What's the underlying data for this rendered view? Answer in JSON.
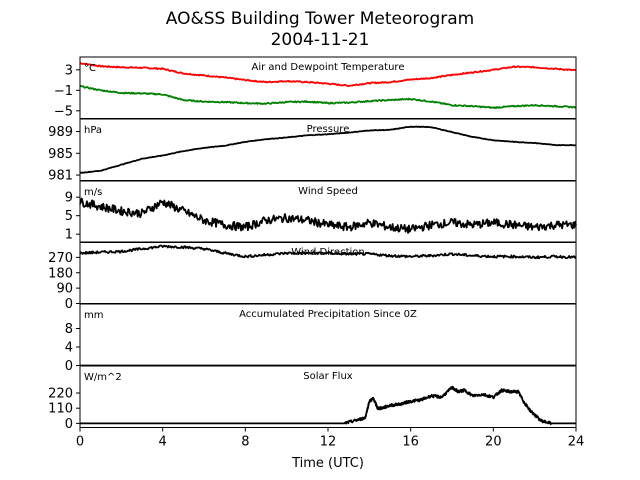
{
  "figure": {
    "title_line1": "AO&SS Building Tower Meteorogram",
    "title_line2": "2004-11-21",
    "xlabel": "Time (UTC)"
  },
  "chart_data": [
    {
      "type": "line",
      "title": "Air and Dewpoint Temperature",
      "unit": "°C",
      "xlim": [
        0,
        24
      ],
      "ylim": [
        -6.5,
        5.5
      ],
      "yticks": [
        -5,
        -1,
        3
      ],
      "ytick_labels": [
        "−5",
        "−1",
        "3"
      ],
      "x": [
        0,
        1,
        2,
        3,
        4,
        5,
        6,
        7,
        8,
        9,
        10,
        11,
        12,
        13,
        14,
        15,
        16,
        17,
        18,
        19,
        20,
        21,
        22,
        23,
        24
      ],
      "series": [
        {
          "key": "air",
          "color": "#ff0000",
          "values": [
            4.3,
            3.7,
            3.5,
            3.4,
            3.2,
            2.3,
            1.9,
            1.5,
            1.0,
            0.6,
            0.8,
            0.6,
            0.3,
            -0.1,
            0.4,
            0.6,
            1.1,
            1.4,
            2.0,
            2.5,
            3.0,
            3.6,
            3.5,
            3.2,
            2.9
          ]
        },
        {
          "key": "dewpoint",
          "color": "#008000",
          "values": [
            -0.2,
            -1.0,
            -1.5,
            -1.6,
            -1.8,
            -2.9,
            -3.2,
            -3.3,
            -3.5,
            -3.6,
            -3.3,
            -3.2,
            -3.5,
            -3.4,
            -3.1,
            -2.9,
            -2.7,
            -3.2,
            -3.9,
            -4.1,
            -4.4,
            -4.1,
            -3.9,
            -4.1,
            -4.3
          ]
        }
      ]
    },
    {
      "type": "line",
      "title": "Pressure",
      "unit": "hPa",
      "xlim": [
        0,
        24
      ],
      "ylim": [
        980,
        991.3
      ],
      "yticks": [
        981,
        985,
        989
      ],
      "x": [
        0,
        1,
        2,
        3,
        4,
        5,
        6,
        7,
        8,
        9,
        10,
        11,
        12,
        13,
        14,
        15,
        16,
        17,
        18,
        19,
        20,
        21,
        22,
        23,
        24
      ],
      "series": [
        {
          "key": "pressure",
          "color": "#000000",
          "values": [
            981.4,
            981.8,
            982.9,
            984.0,
            984.6,
            985.4,
            986.0,
            986.4,
            987.1,
            987.6,
            987.9,
            988.3,
            988.5,
            988.8,
            989.2,
            989.3,
            989.9,
            989.8,
            988.9,
            988.0,
            987.4,
            987.1,
            986.9,
            986.5,
            986.5
          ]
        }
      ]
    },
    {
      "type": "line",
      "title": "Wind Speed",
      "unit": "m/s",
      "xlim": [
        0,
        24
      ],
      "ylim": [
        -0.8,
        12.5
      ],
      "yticks": [
        1,
        5,
        9
      ],
      "x": [
        0,
        1,
        2,
        3,
        4,
        5,
        6,
        7,
        8,
        9,
        10,
        11,
        12,
        13,
        14,
        15,
        16,
        17,
        18,
        19,
        20,
        21,
        22,
        23,
        24
      ],
      "series": [
        {
          "key": "wind_speed",
          "color": "#000000",
          "values": [
            8,
            7,
            6,
            5.5,
            8,
            6,
            4,
            3,
            2.5,
            4,
            4.5,
            4,
            3,
            2.5,
            3.5,
            2.5,
            2,
            3,
            3.5,
            3,
            3.5,
            3,
            2.5,
            3,
            3
          ]
        }
      ]
    },
    {
      "type": "line",
      "title": "Wind Direction",
      "unit": "",
      "xlim": [
        0,
        24
      ],
      "ylim": [
        0,
        360
      ],
      "yticks": [
        0,
        90,
        180,
        270
      ],
      "x": [
        0,
        1,
        2,
        3,
        4,
        5,
        6,
        7,
        8,
        9,
        10,
        11,
        12,
        13,
        14,
        15,
        16,
        17,
        18,
        19,
        20,
        21,
        22,
        23,
        24
      ],
      "series": [
        {
          "key": "wind_direction",
          "color": "#000000",
          "values": [
            295,
            300,
            305,
            320,
            335,
            330,
            320,
            295,
            275,
            285,
            295,
            295,
            295,
            290,
            290,
            280,
            275,
            280,
            290,
            280,
            275,
            275,
            270,
            275,
            270
          ]
        }
      ]
    },
    {
      "type": "line",
      "title": "Accumulated Precipitation Since 0Z",
      "unit": "mm",
      "xlim": [
        0,
        24
      ],
      "ylim": [
        0,
        13.3
      ],
      "yticks": [
        0,
        4,
        8
      ],
      "x": [
        0,
        24
      ],
      "series": [
        {
          "key": "precipitation",
          "color": "#000000",
          "values": [
            0,
            0
          ]
        }
      ]
    },
    {
      "type": "line",
      "title": "Solar Flux",
      "unit": "W/m^2",
      "xlim": [
        0,
        24
      ],
      "ylim": [
        -30,
        416
      ],
      "yticks": [
        0,
        110,
        220
      ],
      "x": [
        0,
        12.8,
        13.3,
        13.8,
        14.0,
        14.2,
        14.4,
        14.6,
        15.0,
        15.5,
        16.0,
        16.5,
        17.0,
        17.5,
        18.0,
        18.3,
        18.6,
        19.0,
        19.5,
        20.0,
        20.4,
        20.8,
        21.2,
        21.5,
        21.8,
        22.3,
        22.8,
        24.0
      ],
      "series": [
        {
          "key": "solar_flux",
          "color": "#000000",
          "values": [
            0,
            0,
            20,
            40,
            160,
            180,
            110,
            110,
            130,
            140,
            160,
            170,
            200,
            190,
            260,
            230,
            240,
            200,
            210,
            190,
            240,
            230,
            230,
            150,
            90,
            20,
            0,
            0
          ]
        }
      ]
    }
  ],
  "xaxis": {
    "ticks": [
      0,
      4,
      8,
      12,
      16,
      20,
      24
    ]
  }
}
